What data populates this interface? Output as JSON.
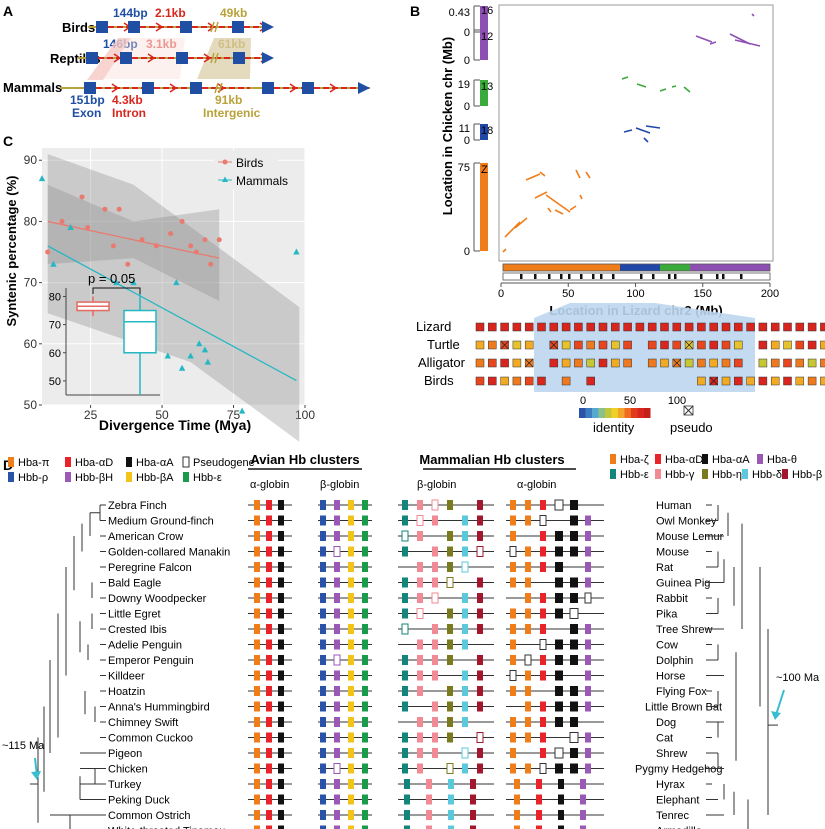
{
  "colors": {
    "exon": "#1f4ea3",
    "intron": "#d7261e",
    "intergenic": "#b8a23a",
    "birds": "#e87a6f",
    "mammals": "#25b7c3",
    "chr16": "#8e4fb3",
    "chr13": "#3aaa3a",
    "chr18": "#2047a8",
    "chrZ": "#ef7d1a"
  },
  "panelA": {
    "letter": "A",
    "rows": [
      "Birds",
      "Reptiles",
      "Mammals"
    ],
    "birds": {
      "exon": "144bp",
      "intron": "2.1kb",
      "intergenic": "49kb"
    },
    "reptiles": {
      "exon": "146bp",
      "intron": "3.1kb",
      "intergenic": "61kb"
    },
    "mammals": {
      "exon": "151bp",
      "intron": "4.3kb",
      "intergenic": "91kb"
    },
    "legend": {
      "exon": "Exon",
      "intron": "Intron",
      "intergenic": "Intergenic"
    }
  },
  "panelB": {
    "letter": "B",
    "ylabel": "Location in Chicken chr (Mb)",
    "xlabel": "Location in Lizard chr2 (Mb)",
    "xticks": [
      "0",
      "50",
      "100",
      "150",
      "200"
    ],
    "chromosomes": [
      {
        "name": "16",
        "top": "0.43",
        "bottom": "0",
        "color": "#8e4fb3"
      },
      {
        "name": "12",
        "top": "",
        "bottom": "0",
        "color": "#8e4fb3"
      },
      {
        "name": "13",
        "top": "19",
        "bottom": "0",
        "color": "#3aaa3a"
      },
      {
        "name": "18",
        "top": "11",
        "bottom": "0",
        "color": "#2047a8"
      },
      {
        "name": "Z",
        "top": "75",
        "bottom": "0",
        "color": "#ef7d1a"
      }
    ],
    "species": [
      "Lizard",
      "Turtle",
      "Alligator",
      "Birds"
    ],
    "legend": {
      "ticks": [
        "0",
        "50",
        "100"
      ],
      "identity": "identity",
      "pseudo": "pseudo"
    }
  },
  "panelC": {
    "letter": "C",
    "ylabel": "Syntenic percentage (%)",
    "xlabel": "Divergence Time (Mya)",
    "legend": [
      "Birds",
      "Mammals"
    ],
    "pvalue": "p = 0.05"
  },
  "chart_data": {
    "type": "scatter",
    "title": "",
    "xlabel": "Divergence Time (Mya)",
    "ylabel": "Syntenic percentage (%)",
    "xlim": [
      8,
      100
    ],
    "ylim": [
      50,
      92
    ],
    "xticks": [
      25,
      50,
      75,
      100
    ],
    "yticks": [
      50,
      60,
      70,
      80,
      90
    ],
    "series": [
      {
        "name": "Birds",
        "x": [
          10,
          15,
          22,
          24,
          30,
          33,
          35,
          38,
          43,
          48,
          53,
          57,
          60,
          62,
          65,
          67,
          70
        ],
        "y": [
          75,
          80,
          84,
          79,
          82,
          76,
          82,
          73,
          77,
          76,
          78,
          80,
          76,
          75,
          77,
          73,
          77
        ]
      },
      {
        "name": "Mammals",
        "x": [
          8,
          12,
          18,
          34,
          40,
          52,
          55,
          57,
          60,
          63,
          65,
          66,
          78,
          97
        ],
        "y": [
          87,
          73,
          79,
          70,
          70,
          58,
          70,
          56,
          58,
          60,
          59,
          57,
          49,
          75
        ]
      }
    ],
    "fit": {
      "Birds": {
        "x": [
          10,
          70
        ],
        "y": [
          80,
          74
        ]
      },
      "Mammals": {
        "x": [
          10,
          97
        ],
        "y": [
          76,
          54
        ]
      }
    },
    "inset": {
      "yticks": [
        50,
        60,
        70,
        80
      ],
      "ylim": [
        45,
        83
      ],
      "Birds": {
        "q1": 75,
        "median": 76.5,
        "q3": 78,
        "min": 73,
        "max": 80
      },
      "Mammals": {
        "q1": 60,
        "median": 71,
        "q3": 75,
        "min": 45,
        "max": 81
      }
    }
  },
  "panelD": {
    "letter": "D",
    "avian_legend": [
      "Hba-π",
      "Hba-αD",
      "Hba-αA",
      "Pseudogene",
      "Hbb-ρ",
      "Hbb-βH",
      "Hbb-βA",
      "Hbb-ε"
    ],
    "mammal_legend": [
      "Hba-ζ",
      "Hba-αD",
      "Hba-αA",
      "Hba-θ",
      "Hbb-ε",
      "Hbb-γ",
      "Hbb-η",
      "Hbb-δ",
      "Hbb-β"
    ],
    "avian_title": "Avian Hb clusters",
    "mammal_title": "Mammalian Hb clusters",
    "alpha": "α-globin",
    "beta": "β-globin",
    "birds": [
      "Zebra Finch",
      "Medium Ground-finch",
      "American Crow",
      "Golden-collared Manakin",
      "Peregrine Falcon",
      "Bald Eagle",
      "Downy Woodpecker",
      "Little Egret",
      "Crested Ibis",
      "Adelie Penguin",
      "Emperor Penguin",
      "Killdeer",
      "Hoatzin",
      "Anna's Hummingbird",
      "Chimney Swift",
      "Common Cuckoo",
      "Pigeon",
      "Chicken",
      "Turkey",
      "Peking Duck",
      "Common Ostrich",
      "White-throated Tinamou"
    ],
    "mammals": [
      "Human",
      "Owl Monkey",
      "Mouse Lemur",
      "Mouse",
      "Rat",
      "Guinea Pig",
      "Rabbit",
      "Pika",
      "Tree Shrew",
      "Cow",
      "Dolphin",
      "Horse",
      "Flying Fox",
      "Little Brown Bat",
      "Dog",
      "Cat",
      "Shrew",
      "Pygmy Hedgehog",
      "Hyrax",
      "Elephant",
      "Tenrec",
      "Armadillo"
    ],
    "bird_age": "~115 Ma",
    "mammal_age": "~100 Ma"
  }
}
